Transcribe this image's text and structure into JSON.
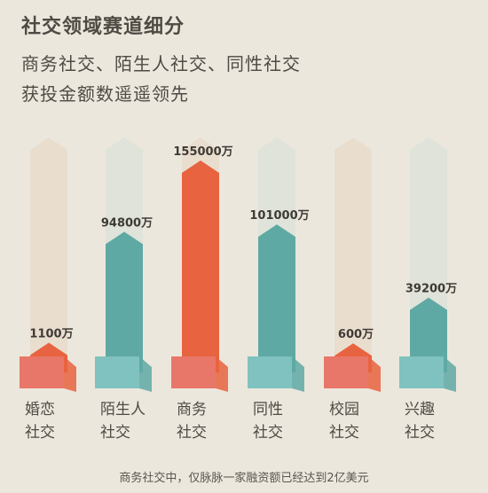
{
  "header": {
    "title": "社交领域赛道细分",
    "subtitle_line1": "商务社交、陌生人社交、同性社交",
    "subtitle_line2": "获投金额数遥遥领先"
  },
  "chart_data": {
    "type": "bar",
    "categories": [
      "婚恋社交",
      "陌生人社交",
      "商务社交",
      "同性社交",
      "校园社交",
      "兴趣社交"
    ],
    "category_lines": [
      [
        "婚恋",
        "社交"
      ],
      [
        "陌生人",
        "社交"
      ],
      [
        "商务",
        "社交"
      ],
      [
        "同性",
        "社交"
      ],
      [
        "校园",
        "社交"
      ],
      [
        "兴趣",
        "社交"
      ]
    ],
    "values": [
      1100,
      94800,
      155000,
      101000,
      600,
      39200
    ],
    "value_labels": [
      "1100万",
      "94800万",
      "155000万",
      "101000万",
      "600万",
      "39200万"
    ],
    "colors": [
      "#e8633f",
      "#5fa9a4",
      "#e8633f",
      "#5fa9a4",
      "#e8633f",
      "#5fa9a4"
    ],
    "bg_colors": [
      "#e9ddce",
      "#dfe3d9",
      "#e9ddce",
      "#dfe3d9",
      "#e9ddce",
      "#dfe3d9"
    ],
    "box_colors": [
      "#e8776a",
      "#7fc2bf",
      "#e8776a",
      "#7fc2bf",
      "#e8776a",
      "#7fc2bf"
    ],
    "title": "",
    "xlabel": "",
    "ylabel": ""
  },
  "footnote": "商务社交中，仅脉脉一家融资额已经达到2亿美元"
}
